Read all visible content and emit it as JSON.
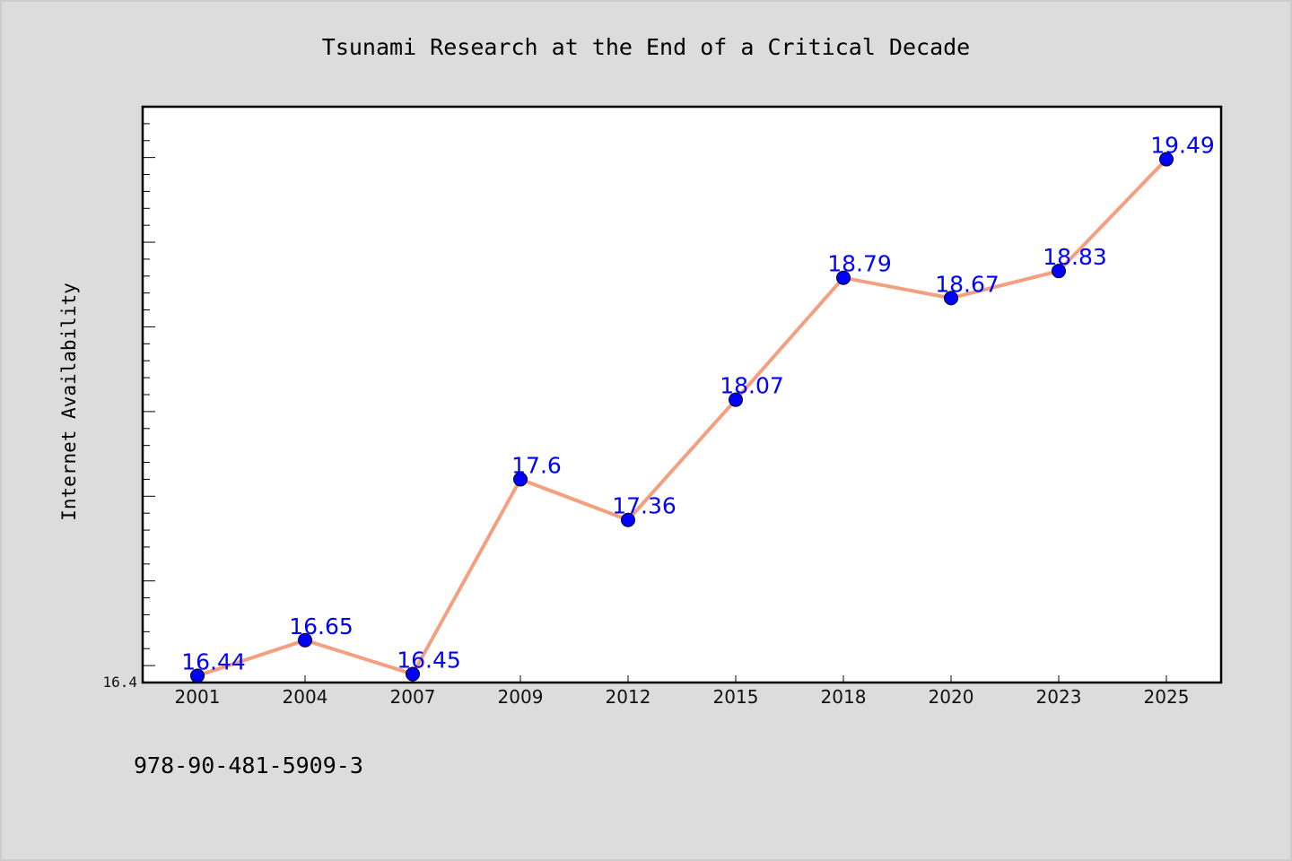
{
  "chart_data": {
    "type": "line",
    "title": "Tsunami Research at the End of a Critical Decade",
    "ylabel": "Internet Availability",
    "xlabel": "",
    "categories": [
      "2001",
      "2004",
      "2007",
      "2009",
      "2012",
      "2015",
      "2018",
      "2020",
      "2023",
      "2025"
    ],
    "series": [
      {
        "values": [
          16.44,
          16.65,
          16.45,
          17.6,
          17.36,
          18.07,
          18.79,
          18.67,
          18.83,
          19.49
        ],
        "labels": [
          "16.44",
          "16.65",
          "16.45",
          "17.6",
          "17.36",
          "18.07",
          "18.79",
          "18.67",
          "18.83",
          "19.49"
        ],
        "line_color": "#f4a080",
        "marker_color": "#0000ff"
      }
    ],
    "ylim": [
      16.4,
      19.8
    ],
    "y_tick_label": "16.4",
    "grid": false,
    "legend": "none"
  },
  "footer": {
    "isbn": "978-90-481-5909-3"
  },
  "colors": {
    "background": "#dcdcdc",
    "plot_background": "#ffffff",
    "line": "#f4a080",
    "marker": "#0000ff",
    "data_label": "#0000ff"
  }
}
